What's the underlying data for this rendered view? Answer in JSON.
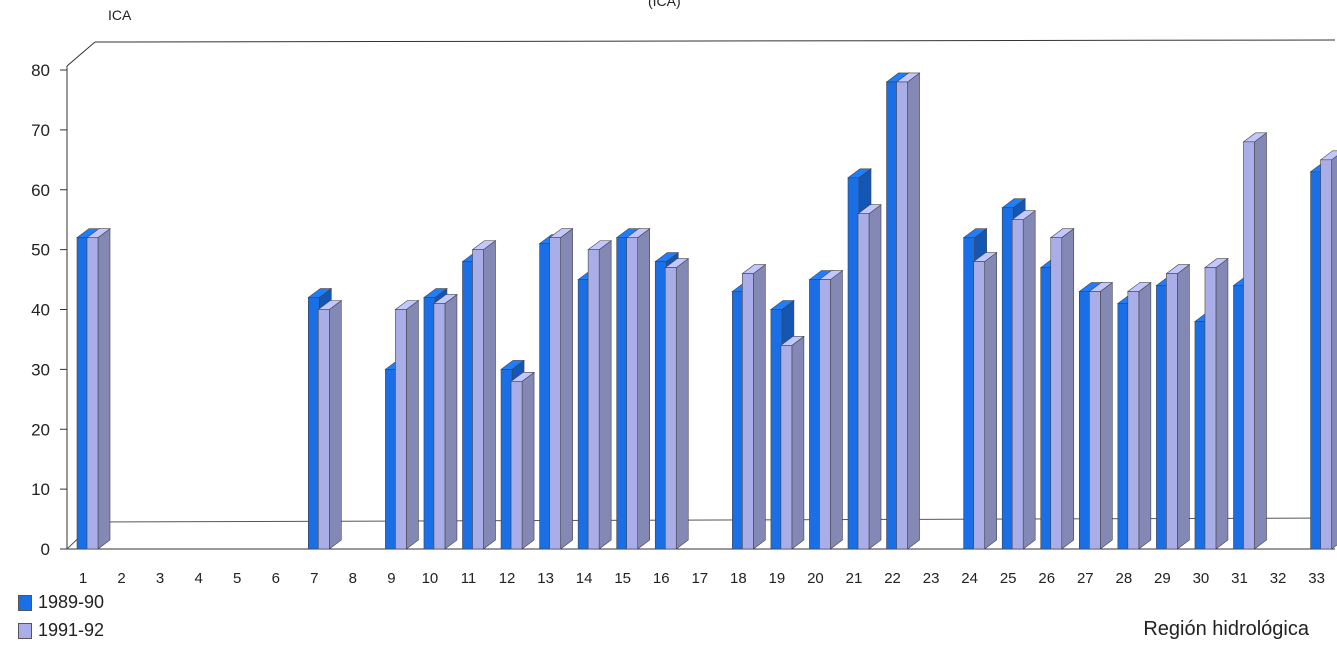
{
  "chart_data": {
    "type": "bar",
    "ylabel": "ICA",
    "xlabel": "Región hidrológica",
    "top_note": "(ICA)",
    "ylim": [
      0,
      80
    ],
    "yticks": [
      0,
      10,
      20,
      30,
      40,
      50,
      60,
      70,
      80
    ],
    "categories": [
      "1",
      "2",
      "3",
      "4",
      "5",
      "6",
      "7",
      "8",
      "9",
      "10",
      "11",
      "12",
      "13",
      "14",
      "15",
      "16",
      "17",
      "18",
      "19",
      "20",
      "21",
      "22",
      "23",
      "24",
      "25",
      "26",
      "27",
      "28",
      "29",
      "30",
      "31",
      "32",
      "33"
    ],
    "series": [
      {
        "name": "1989-90",
        "color": "#1a6ee6",
        "values": [
          52,
          null,
          null,
          null,
          null,
          null,
          42,
          null,
          30,
          42,
          48,
          30,
          51,
          45,
          52,
          48,
          null,
          43,
          40,
          45,
          62,
          78,
          null,
          52,
          57,
          47,
          43,
          41,
          44,
          38,
          44,
          null,
          63
        ]
      },
      {
        "name": "1991-92",
        "color": "#a9aee8",
        "values": [
          52,
          null,
          null,
          null,
          null,
          null,
          40,
          null,
          40,
          41,
          50,
          28,
          52,
          50,
          52,
          47,
          null,
          46,
          34,
          45,
          56,
          78,
          null,
          48,
          55,
          52,
          43,
          43,
          46,
          47,
          68,
          null,
          65
        ]
      }
    ],
    "grid": false,
    "legend_position": "bottom-left"
  }
}
